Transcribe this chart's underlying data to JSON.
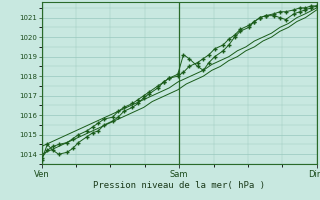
{
  "title": "",
  "xlabel": "Pression niveau de la mer( hPa )",
  "ylim": [
    1013.5,
    1021.8
  ],
  "yticks": [
    1014,
    1015,
    1016,
    1017,
    1018,
    1019,
    1020,
    1021
  ],
  "xtick_labels": [
    "Ven",
    "Sam",
    "Dim"
  ],
  "xtick_pos": [
    0.0,
    0.485,
    0.97
  ],
  "bg_color": "#c8e8e0",
  "plot_bg_color": "#c8e8e0",
  "grid_color": "#98c8be",
  "line_color": "#1a5c1a",
  "marker_color": "#1a5c1a",
  "line1_x": [
    0.0,
    0.02,
    0.04,
    0.06,
    0.09,
    0.11,
    0.13,
    0.16,
    0.18,
    0.2,
    0.22,
    0.25,
    0.27,
    0.29,
    0.32,
    0.34,
    0.36,
    0.38,
    0.41,
    0.43,
    0.45,
    0.48,
    0.5,
    0.52,
    0.55,
    0.57,
    0.59,
    0.61,
    0.64,
    0.66,
    0.68,
    0.7,
    0.73,
    0.75,
    0.77,
    0.79,
    0.82,
    0.84,
    0.86,
    0.89,
    0.91,
    0.93,
    0.95,
    0.97
  ],
  "line1_y": [
    1013.7,
    1014.5,
    1014.2,
    1014.0,
    1014.1,
    1014.3,
    1014.6,
    1014.9,
    1015.1,
    1015.2,
    1015.5,
    1015.7,
    1015.9,
    1016.2,
    1016.4,
    1016.6,
    1016.9,
    1017.1,
    1017.4,
    1017.7,
    1017.9,
    1018.1,
    1019.1,
    1018.9,
    1018.5,
    1018.3,
    1018.7,
    1019.0,
    1019.3,
    1019.6,
    1020.0,
    1020.3,
    1020.5,
    1020.8,
    1021.0,
    1021.1,
    1021.1,
    1021.0,
    1020.9,
    1021.2,
    1021.3,
    1021.4,
    1021.5,
    1021.6
  ],
  "line2_x": [
    0.0,
    0.03,
    0.06,
    0.09,
    0.12,
    0.15,
    0.18,
    0.21,
    0.24,
    0.27,
    0.3,
    0.33,
    0.36,
    0.39,
    0.42,
    0.45,
    0.48,
    0.51,
    0.54,
    0.57,
    0.6,
    0.63,
    0.66,
    0.69,
    0.72,
    0.75,
    0.78,
    0.81,
    0.84,
    0.87,
    0.9,
    0.93,
    0.97
  ],
  "line2_y": [
    1014.0,
    1014.2,
    1014.4,
    1014.6,
    1014.8,
    1015.0,
    1015.2,
    1015.4,
    1015.6,
    1015.8,
    1016.0,
    1016.2,
    1016.4,
    1016.7,
    1016.9,
    1017.1,
    1017.3,
    1017.6,
    1017.8,
    1018.0,
    1018.3,
    1018.5,
    1018.8,
    1019.0,
    1019.3,
    1019.5,
    1019.8,
    1020.0,
    1020.3,
    1020.5,
    1020.8,
    1021.0,
    1021.4
  ],
  "line3_x": [
    0.0,
    0.03,
    0.06,
    0.09,
    0.12,
    0.15,
    0.18,
    0.21,
    0.24,
    0.27,
    0.3,
    0.33,
    0.36,
    0.39,
    0.42,
    0.45,
    0.48,
    0.51,
    0.54,
    0.57,
    0.6,
    0.63,
    0.66,
    0.69,
    0.72,
    0.75,
    0.78,
    0.81,
    0.84,
    0.87,
    0.9,
    0.93,
    0.97
  ],
  "line3_y": [
    1014.4,
    1014.6,
    1014.8,
    1015.0,
    1015.2,
    1015.4,
    1015.6,
    1015.8,
    1016.0,
    1016.2,
    1016.4,
    1016.6,
    1016.8,
    1017.0,
    1017.2,
    1017.4,
    1017.7,
    1017.9,
    1018.1,
    1018.3,
    1018.6,
    1018.8,
    1019.0,
    1019.3,
    1019.5,
    1019.8,
    1020.0,
    1020.2,
    1020.5,
    1020.7,
    1021.0,
    1021.2,
    1021.5
  ],
  "line4_x": [
    0.0,
    0.02,
    0.04,
    0.06,
    0.09,
    0.11,
    0.13,
    0.16,
    0.18,
    0.2,
    0.22,
    0.25,
    0.27,
    0.29,
    0.32,
    0.34,
    0.36,
    0.38,
    0.41,
    0.43,
    0.45,
    0.48,
    0.5,
    0.52,
    0.55,
    0.57,
    0.59,
    0.61,
    0.64,
    0.66,
    0.68,
    0.7,
    0.73,
    0.75,
    0.77,
    0.79,
    0.82,
    0.84,
    0.86,
    0.89,
    0.91,
    0.93,
    0.95,
    0.97
  ],
  "line4_y": [
    1013.8,
    1014.2,
    1014.4,
    1014.5,
    1014.6,
    1014.8,
    1015.0,
    1015.2,
    1015.4,
    1015.6,
    1015.8,
    1015.9,
    1016.2,
    1016.4,
    1016.6,
    1016.8,
    1017.0,
    1017.2,
    1017.5,
    1017.7,
    1017.9,
    1018.0,
    1018.2,
    1018.5,
    1018.7,
    1018.9,
    1019.1,
    1019.4,
    1019.6,
    1019.9,
    1020.1,
    1020.4,
    1020.6,
    1020.8,
    1021.0,
    1021.1,
    1021.2,
    1021.3,
    1021.3,
    1021.4,
    1021.5,
    1021.5,
    1021.6,
    1021.6
  ]
}
